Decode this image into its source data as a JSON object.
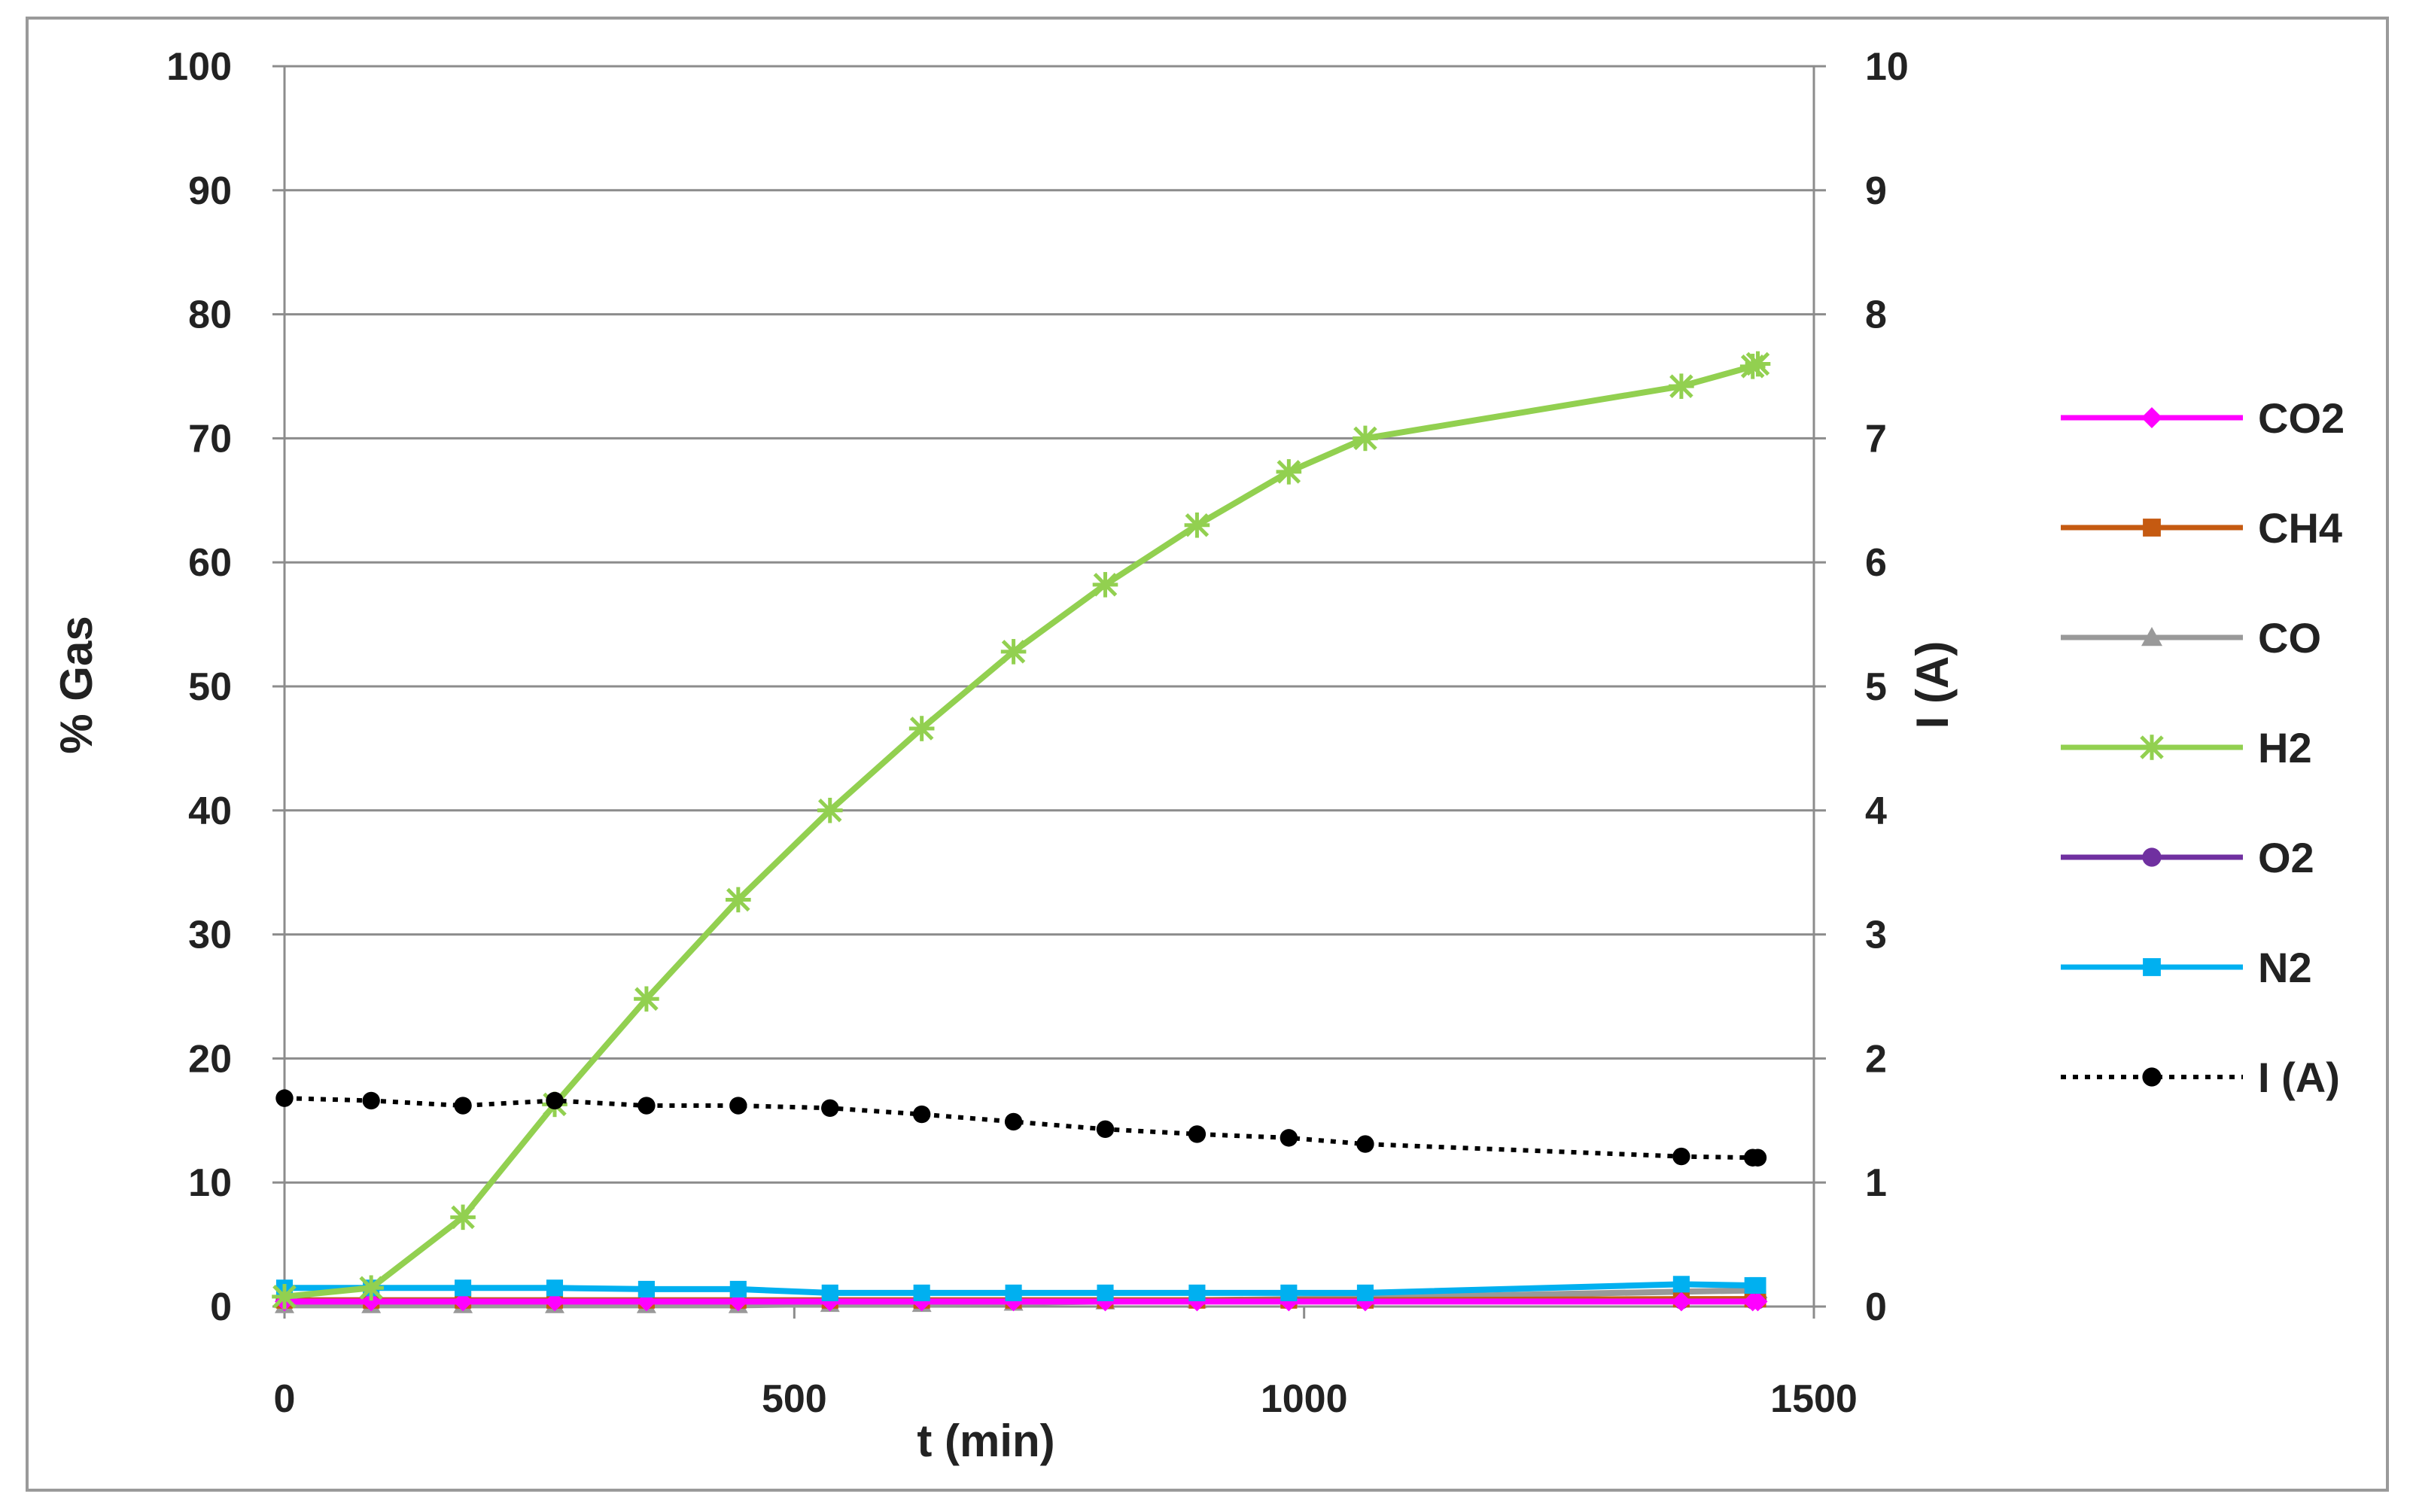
{
  "chart_data": {
    "type": "line",
    "title": "",
    "xlabel": "t (min)",
    "ylabel": "% Gas",
    "y2label": "I (A)",
    "xlim": [
      0,
      1500
    ],
    "ylim": [
      0,
      100
    ],
    "y2lim": [
      0,
      10
    ],
    "x_ticks": [
      "0",
      "500",
      "1000",
      "1500"
    ],
    "y_ticks": [
      "0",
      "10",
      "20",
      "30",
      "40",
      "50",
      "60",
      "70",
      "80",
      "90",
      "100"
    ],
    "y2_ticks": [
      "0",
      "1",
      "2",
      "3",
      "4",
      "5",
      "6",
      "7",
      "8",
      "9",
      "10"
    ],
    "grid": "horizontal",
    "legend_position": "right",
    "x": [
      0,
      85,
      175,
      265,
      355,
      445,
      535,
      625,
      715,
      805,
      895,
      985,
      1060,
      1370,
      1440,
      1445
    ],
    "series": [
      {
        "name": "CO2",
        "axis": "left",
        "color": "#ff00ff",
        "marker": "diamond",
        "dash": "solid",
        "values": [
          0.4,
          0.4,
          0.4,
          0.4,
          0.4,
          0.4,
          0.4,
          0.4,
          0.4,
          0.4,
          0.4,
          0.4,
          0.4,
          0.4,
          0.4,
          0.4
        ]
      },
      {
        "name": "CH4",
        "axis": "left",
        "color": "#c55a11",
        "marker": "square",
        "dash": "solid",
        "values": [
          0.5,
          0.5,
          0.5,
          0.5,
          0.5,
          0.5,
          0.5,
          0.5,
          0.5,
          0.5,
          0.5,
          0.5,
          0.5,
          0.6,
          0.6,
          0.6
        ]
      },
      {
        "name": "CO",
        "axis": "left",
        "color": "#999999",
        "marker": "triangle",
        "dash": "solid",
        "values": [
          0.1,
          0.1,
          0.1,
          0.1,
          0.1,
          0.1,
          0.2,
          0.2,
          0.3,
          0.4,
          0.5,
          0.6,
          0.7,
          1.2,
          1.3,
          1.3
        ]
      },
      {
        "name": "H2",
        "axis": "left",
        "color": "#92d050",
        "marker": "star",
        "dash": "solid",
        "values": [
          0.8,
          1.5,
          7.2,
          16.3,
          24.8,
          32.8,
          40.0,
          46.6,
          52.8,
          58.2,
          63.0,
          67.3,
          70.0,
          74.2,
          75.8,
          76.0
        ]
      },
      {
        "name": "O2",
        "axis": "left",
        "color": "#7030a0",
        "marker": "circle",
        "dash": "solid",
        "values": [
          0.5,
          0.5,
          0.5,
          0.5,
          0.5,
          0.5,
          0.5,
          0.5,
          0.5,
          0.5,
          0.5,
          0.5,
          0.5,
          0.5,
          0.5,
          0.5
        ]
      },
      {
        "name": "N2",
        "axis": "left",
        "color": "#00b0f0",
        "marker": "square",
        "dash": "solid",
        "values": [
          1.5,
          1.5,
          1.5,
          1.5,
          1.4,
          1.4,
          1.1,
          1.1,
          1.1,
          1.1,
          1.1,
          1.1,
          1.1,
          1.8,
          1.7,
          1.7
        ]
      },
      {
        "name": "I (A)",
        "axis": "right",
        "color": "#000000",
        "marker": "circle",
        "dash": "dotted",
        "values": [
          1.68,
          1.66,
          1.62,
          1.66,
          1.62,
          1.62,
          1.6,
          1.55,
          1.49,
          1.43,
          1.39,
          1.36,
          1.31,
          1.21,
          1.2,
          1.2
        ]
      }
    ]
  }
}
